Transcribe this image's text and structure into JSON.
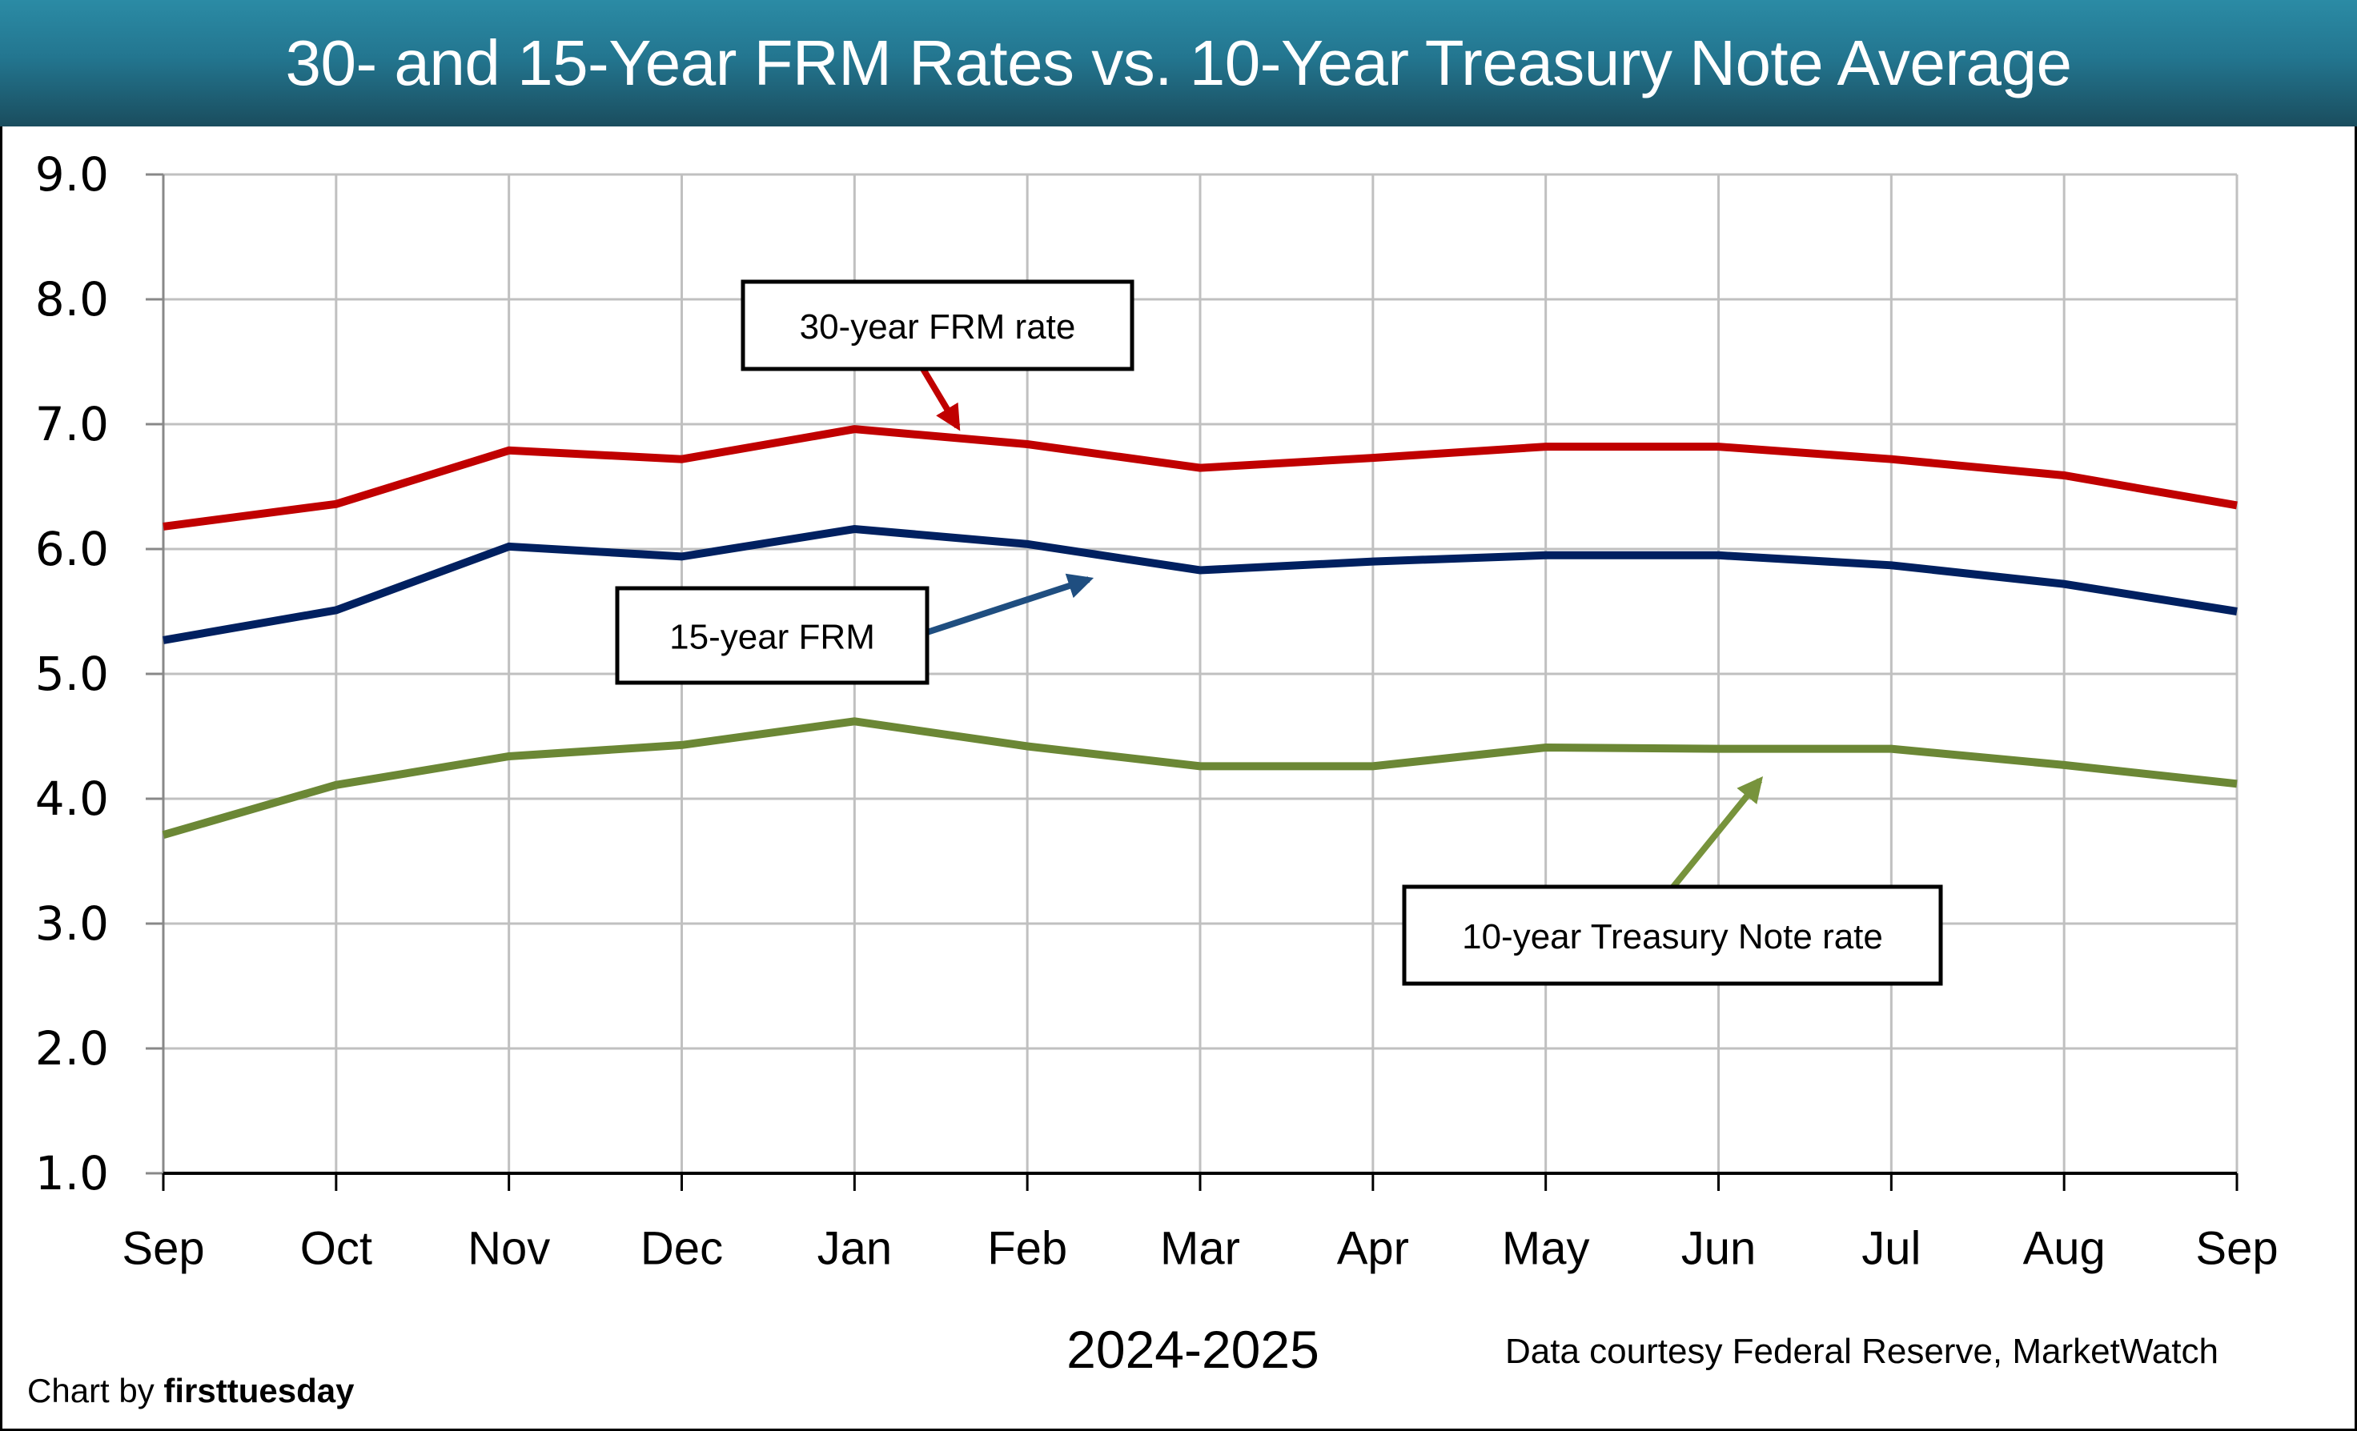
{
  "header": {
    "title": "30- and 15-Year FRM Rates vs. 10-Year Treasury Note Average"
  },
  "footer": {
    "credit_prefix": "Chart by",
    "credit_brand": "firsttuesday",
    "source": "Data courtesy Federal Reserve, MarketWatch"
  },
  "chart_data": {
    "type": "line",
    "title": "30- and 15-Year FRM Rates vs. 10-Year Treasury Note Average",
    "xlabel": "2024-2025",
    "ylabel": "",
    "categories": [
      "Sep",
      "Oct",
      "Nov",
      "Dec",
      "Jan",
      "Feb",
      "Mar",
      "Apr",
      "May",
      "Jun",
      "Jul",
      "Aug",
      "Sep"
    ],
    "ylim": [
      1.0,
      9.0
    ],
    "yticks": [
      "1.0",
      "2.0",
      "3.0",
      "4.0",
      "5.0",
      "6.0",
      "7.0",
      "8.0",
      "9.0"
    ],
    "grid": true,
    "legend": "none (callout boxes)",
    "series": [
      {
        "name": "30-year FRM rate",
        "color": "#c00000",
        "values": [
          6.18,
          6.36,
          6.79,
          6.72,
          6.96,
          6.84,
          6.65,
          6.73,
          6.82,
          6.82,
          6.72,
          6.59,
          6.35
        ]
      },
      {
        "name": "15-year FRM",
        "color": "#002060",
        "values": [
          5.27,
          5.51,
          6.02,
          5.94,
          6.16,
          6.04,
          5.83,
          5.9,
          5.95,
          5.95,
          5.87,
          5.72,
          5.5
        ]
      },
      {
        "name": "10-year Treasury Note rate",
        "color": "#6b8735",
        "values": [
          3.71,
          4.11,
          4.34,
          4.43,
          4.62,
          4.42,
          4.26,
          4.26,
          4.41,
          4.4,
          4.4,
          4.27,
          4.12
        ]
      }
    ],
    "annotations": [
      {
        "text": "30-year FRM rate",
        "series": 0,
        "arrow_color": "#c00000"
      },
      {
        "text": "15-year FRM",
        "series": 1,
        "arrow_color": "#1f4e80"
      },
      {
        "text": "10-year Treasury Note rate",
        "series": 2,
        "arrow_color": "#77933c"
      }
    ]
  }
}
